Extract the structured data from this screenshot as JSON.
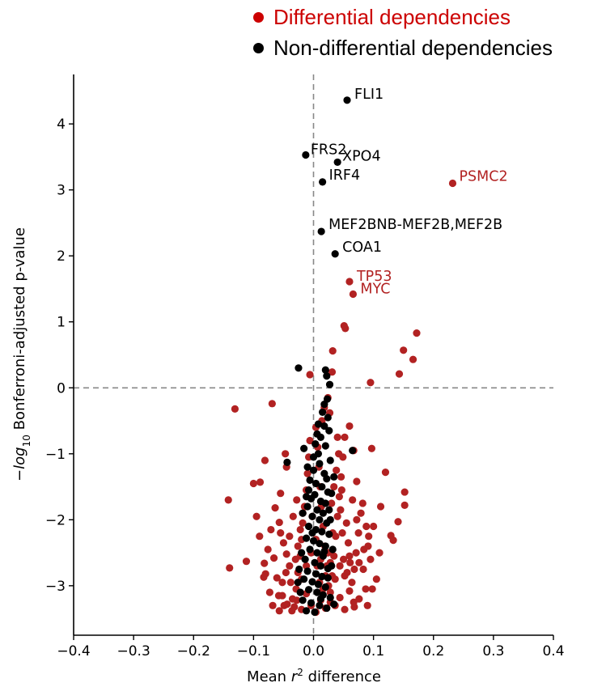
{
  "legend": {
    "items": [
      {
        "label": "Differential dependencies",
        "color": "#cc0000"
      },
      {
        "label": "Non-differential dependencies",
        "color": "#000000"
      }
    ]
  },
  "chart_data": {
    "type": "scatter",
    "xlabel": "Mean r² difference",
    "xlabel_parts": {
      "before": "Mean ",
      "italic": "r",
      "sup": "2",
      "after": " difference"
    },
    "ylabel": "−log10 Bonferroni-adjusted p-value",
    "ylabel_parts": {
      "minus": "−",
      "italic": "log",
      "sub": "10",
      "after": " Bonferroni-adjusted p-value"
    },
    "xlim": [
      -0.4,
      0.4
    ],
    "ylim": [
      -3.75,
      4.75
    ],
    "xticks": [
      -0.4,
      -0.3,
      -0.2,
      -0.1,
      0.0,
      0.1,
      0.2,
      0.3,
      0.4
    ],
    "xtick_labels": [
      "−0.4",
      "−0.3",
      "−0.2",
      "−0.1",
      "0.0",
      "0.1",
      "0.2",
      "0.3",
      "0.4"
    ],
    "yticks": [
      -3,
      -2,
      -1,
      0,
      1,
      2,
      3,
      4
    ],
    "ytick_labels": [
      "−3",
      "−2",
      "−1",
      "0",
      "1",
      "2",
      "3",
      "4"
    ],
    "reference_lines": {
      "x": 0,
      "y": 0,
      "style": "dashed",
      "color": "#888888"
    },
    "grid": false,
    "series_colors": {
      "differential": "#b22222",
      "non_differential": "#000000"
    },
    "labeled_points": [
      {
        "label": "FLI1",
        "x": 0.056,
        "y": 4.36,
        "group": "non_differential"
      },
      {
        "label": "FRS2",
        "x": -0.013,
        "y": 3.53,
        "group": "non_differential"
      },
      {
        "label": "XPO4",
        "x": 0.04,
        "y": 3.42,
        "group": "non_differential"
      },
      {
        "label": "IRF4",
        "x": 0.015,
        "y": 3.12,
        "group": "non_differential"
      },
      {
        "label": "PSMC2",
        "x": 0.232,
        "y": 3.1,
        "group": "differential"
      },
      {
        "label": "MEF2BNB-MEF2B,MEF2B",
        "x": 0.013,
        "y": 2.37,
        "group": "non_differential"
      },
      {
        "label": "COA1",
        "x": 0.036,
        "y": 2.03,
        "group": "non_differential"
      },
      {
        "label": "TP53",
        "x": 0.06,
        "y": 1.61,
        "group": "differential"
      },
      {
        "label": "MYC",
        "x": 0.066,
        "y": 1.42,
        "group": "differential"
      }
    ],
    "differential_points": [
      [
        0.172,
        0.83
      ],
      [
        0.051,
        0.94
      ],
      [
        0.053,
        0.9
      ],
      [
        0.15,
        0.57
      ],
      [
        0.166,
        0.43
      ],
      [
        0.032,
        0.56
      ],
      [
        0.143,
        0.21
      ],
      [
        0.095,
        0.08
      ],
      [
        -0.006,
        0.2
      ],
      [
        0.031,
        0.24
      ],
      [
        -0.131,
        -0.32
      ],
      [
        -0.069,
        -0.24
      ],
      [
        0.027,
        -0.38
      ],
      [
        0.06,
        -0.58
      ],
      [
        0.097,
        -0.92
      ],
      [
        -0.047,
        -1.0
      ],
      [
        -0.081,
        -1.1
      ],
      [
        -0.045,
        -1.2
      ],
      [
        0.067,
        -0.95
      ],
      [
        0.12,
        -1.28
      ],
      [
        0.072,
        -1.42
      ],
      [
        0.152,
        -1.58
      ],
      [
        0.152,
        -1.78
      ],
      [
        0.141,
        -2.03
      ],
      [
        0.129,
        -2.24
      ],
      [
        0.133,
        -2.31
      ],
      [
        0.112,
        -1.8
      ],
      [
        -0.142,
        -1.7
      ],
      [
        -0.089,
        -1.43
      ],
      [
        -0.055,
        -1.6
      ],
      [
        -0.112,
        -2.63
      ],
      [
        -0.14,
        -2.73
      ],
      [
        -0.082,
        -2.66
      ],
      [
        -0.08,
        -2.82
      ],
      [
        -0.083,
        -2.87
      ],
      [
        -0.064,
        -1.82
      ],
      [
        -0.057,
        -2.04
      ],
      [
        -0.055,
        -2.2
      ],
      [
        -0.05,
        -2.35
      ],
      [
        -0.045,
        -2.52
      ],
      [
        -0.04,
        -2.7
      ],
      [
        -0.038,
        -2.95
      ],
      [
        -0.035,
        -3.2
      ],
      [
        -0.032,
        -3.32
      ],
      [
        -0.057,
        -3.38
      ],
      [
        -0.049,
        -3.3
      ],
      [
        -0.029,
        -3.05
      ],
      [
        -0.026,
        -2.8
      ],
      [
        -0.022,
        -2.55
      ],
      [
        -0.02,
        -2.3
      ],
      [
        -0.018,
        -2.05
      ],
      [
        -0.015,
        -1.8
      ],
      [
        -0.012,
        -1.55
      ],
      [
        -0.01,
        -1.3
      ],
      [
        -0.008,
        -1.05
      ],
      [
        -0.006,
        -0.8
      ],
      [
        0.004,
        -0.6
      ],
      [
        0.007,
        -0.9
      ],
      [
        0.009,
        -1.2
      ],
      [
        0.011,
        -1.5
      ],
      [
        0.013,
        -1.8
      ],
      [
        0.016,
        -2.1
      ],
      [
        0.019,
        -2.4
      ],
      [
        0.022,
        -2.7
      ],
      [
        0.025,
        -3.0
      ],
      [
        0.028,
        -3.25
      ],
      [
        0.031,
        -2.85
      ],
      [
        0.034,
        -2.55
      ],
      [
        0.037,
        -2.25
      ],
      [
        0.04,
        -1.95
      ],
      [
        0.043,
        -1.65
      ],
      [
        0.046,
        -1.35
      ],
      [
        0.049,
        -1.05
      ],
      [
        0.052,
        -0.75
      ],
      [
        0.055,
        -2.05
      ],
      [
        0.058,
        -2.35
      ],
      [
        0.061,
        -2.65
      ],
      [
        0.064,
        -2.95
      ],
      [
        0.067,
        -3.25
      ],
      [
        0.071,
        -2.5
      ],
      [
        0.075,
        -2.2
      ],
      [
        0.079,
        -1.9
      ],
      [
        0.083,
        -2.75
      ],
      [
        0.087,
        -3.05
      ],
      [
        0.091,
        -2.4
      ],
      [
        0.095,
        -2.6
      ],
      [
        0.1,
        -2.1
      ],
      [
        0.105,
        -2.9
      ],
      [
        0.11,
        -2.5
      ],
      [
        -0.1,
        -1.45
      ],
      [
        -0.095,
        -1.95
      ],
      [
        -0.09,
        -2.25
      ],
      [
        -0.076,
        -2.45
      ],
      [
        -0.071,
        -2.15
      ],
      [
        -0.066,
        -2.58
      ],
      [
        -0.061,
        -2.88
      ],
      [
        -0.073,
        -3.1
      ],
      [
        -0.068,
        -3.3
      ],
      [
        -0.052,
        -3.15
      ],
      [
        -0.044,
        -3.28
      ],
      [
        -0.036,
        -3.38
      ],
      [
        -0.028,
        -3.22
      ],
      [
        -0.02,
        -3.36
      ],
      [
        -0.012,
        -3.12
      ],
      [
        -0.004,
        -3.3
      ],
      [
        0.004,
        -3.4
      ],
      [
        0.012,
        -3.22
      ],
      [
        0.02,
        -3.34
      ],
      [
        0.028,
        -3.1
      ],
      [
        0.036,
        -3.3
      ],
      [
        0.044,
        -3.18
      ],
      [
        0.052,
        -3.36
      ],
      [
        0.06,
        -3.08
      ],
      [
        0.068,
        -3.32
      ],
      [
        0.076,
        -3.2
      ],
      [
        -0.02,
        -2.9
      ],
      [
        -0.012,
        -2.7
      ],
      [
        -0.004,
        -2.5
      ],
      [
        0.004,
        -2.3
      ],
      [
        0.012,
        -2.6
      ],
      [
        0.02,
        -2.85
      ],
      [
        0.028,
        -2.65
      ],
      [
        0.036,
        -2.9
      ],
      [
        0.044,
        -2.7
      ],
      [
        0.052,
        -2.85
      ],
      [
        0.06,
        -2.55
      ],
      [
        0.068,
        -2.75
      ],
      [
        0.076,
        -2.65
      ],
      [
        0.084,
        -2.45
      ],
      [
        0.092,
        -2.25
      ],
      [
        -0.03,
        -2.6
      ],
      [
        -0.026,
        -2.4
      ],
      [
        -0.022,
        -2.15
      ],
      [
        -0.018,
        -1.9
      ],
      [
        -0.028,
        -1.7
      ],
      [
        0.03,
        -1.75
      ],
      [
        0.034,
        -1.5
      ],
      [
        0.038,
        -1.25
      ],
      [
        0.042,
        -1.0
      ],
      [
        0.045,
        -1.85
      ],
      [
        0.048,
        -2.2
      ],
      [
        0.082,
        -1.75
      ],
      [
        0.088,
        -2.1
      ],
      [
        0.072,
        -2.0
      ],
      [
        0.065,
        -1.7
      ],
      [
        -0.034,
        -1.95
      ],
      [
        -0.04,
        -2.25
      ],
      [
        -0.046,
        -2.8
      ],
      [
        -0.052,
        -2.95
      ],
      [
        -0.058,
        -3.15
      ],
      [
        0.014,
        -0.5
      ],
      [
        0.018,
        -0.3
      ],
      [
        0.024,
        -0.15
      ],
      [
        0.04,
        -0.75
      ],
      [
        0.047,
        -1.55
      ],
      [
        0.09,
        -3.3
      ],
      [
        0.098,
        -3.05
      ],
      [
        -0.002,
        -1.95
      ],
      [
        0.006,
        -2.7
      ],
      [
        0.01,
        -2.95
      ],
      [
        0.016,
        -3.05
      ],
      [
        0.024,
        -2.5
      ],
      [
        0.032,
        -2.2
      ],
      [
        0.05,
        -2.6
      ],
      [
        0.056,
        -2.8
      ]
    ],
    "non_differential_points": [
      [
        -0.025,
        0.3
      ],
      [
        0.02,
        0.27
      ],
      [
        0.022,
        0.18
      ],
      [
        0.027,
        0.05
      ],
      [
        0.023,
        -0.17
      ],
      [
        0.015,
        -0.37
      ],
      [
        0.024,
        -0.45
      ],
      [
        0.018,
        -0.58
      ],
      [
        0.026,
        -0.65
      ],
      [
        0.006,
        -0.7
      ],
      [
        0.012,
        -0.75
      ],
      [
        0.003,
        -0.85
      ],
      [
        0.02,
        -0.88
      ],
      [
        0.065,
        -0.95
      ],
      [
        0.008,
        -1.0
      ],
      [
        -0.016,
        -0.92
      ],
      [
        -0.044,
        -1.13
      ],
      [
        0.028,
        -1.1
      ],
      [
        0.01,
        -1.15
      ],
      [
        -0.01,
        -1.2
      ],
      [
        0.0,
        -1.25
      ],
      [
        0.018,
        -1.3
      ],
      [
        -0.006,
        -1.4
      ],
      [
        0.004,
        -1.45
      ],
      [
        0.014,
        -1.5
      ],
      [
        -0.008,
        -1.55
      ],
      [
        0.024,
        -1.58
      ],
      [
        0.002,
        -1.62
      ],
      [
        -0.004,
        -1.68
      ],
      [
        0.012,
        -1.72
      ],
      [
        0.02,
        -1.75
      ],
      [
        -0.01,
        -1.8
      ],
      [
        0.006,
        -1.85
      ],
      [
        0.016,
        -1.9
      ],
      [
        -0.002,
        -1.95
      ],
      [
        0.01,
        -2.0
      ],
      [
        0.022,
        -2.05
      ],
      [
        -0.008,
        -2.1
      ],
      [
        0.004,
        -2.15
      ],
      [
        0.014,
        -2.18
      ],
      [
        0.026,
        -2.22
      ],
      [
        -0.012,
        -2.28
      ],
      [
        0.0,
        -2.32
      ],
      [
        0.01,
        -2.36
      ],
      [
        0.02,
        -2.4
      ],
      [
        -0.006,
        -2.45
      ],
      [
        0.006,
        -2.5
      ],
      [
        0.016,
        -2.55
      ],
      [
        -0.014,
        -2.6
      ],
      [
        0.002,
        -2.65
      ],
      [
        0.012,
        -2.7
      ],
      [
        0.024,
        -2.74
      ],
      [
        -0.01,
        -2.78
      ],
      [
        0.004,
        -2.82
      ],
      [
        0.014,
        -2.86
      ],
      [
        -0.016,
        -2.9
      ],
      [
        -0.002,
        -2.94
      ],
      [
        0.008,
        -2.98
      ],
      [
        0.02,
        -3.02
      ],
      [
        -0.008,
        -3.06
      ],
      [
        0.006,
        -3.1
      ],
      [
        0.016,
        -3.14
      ],
      [
        0.028,
        -3.18
      ],
      [
        -0.018,
        -3.22
      ],
      [
        -0.004,
        -3.26
      ],
      [
        0.01,
        -3.3
      ],
      [
        0.022,
        -3.34
      ],
      [
        -0.012,
        -3.38
      ],
      [
        0.002,
        -3.4
      ],
      [
        0.034,
        -3.28
      ],
      [
        -0.022,
        -3.1
      ],
      [
        -0.026,
        -2.95
      ],
      [
        0.03,
        -2.7
      ],
      [
        0.032,
        -2.45
      ],
      [
        0.028,
        -2.0
      ],
      [
        0.03,
        -1.6
      ],
      [
        0.034,
        -1.35
      ],
      [
        -0.02,
        -2.5
      ],
      [
        -0.024,
        -2.75
      ],
      [
        -0.018,
        -1.9
      ],
      [
        0.018,
        -0.25
      ],
      [
        0.008,
        -0.55
      ],
      [
        0.0,
        -1.05
      ],
      [
        0.022,
        -1.38
      ],
      [
        -0.012,
        -1.65
      ],
      [
        0.026,
        -1.85
      ],
      [
        0.018,
        -2.48
      ],
      [
        -0.002,
        -2.2
      ],
      [
        0.024,
        -2.88
      ],
      [
        0.012,
        -3.2
      ]
    ]
  }
}
